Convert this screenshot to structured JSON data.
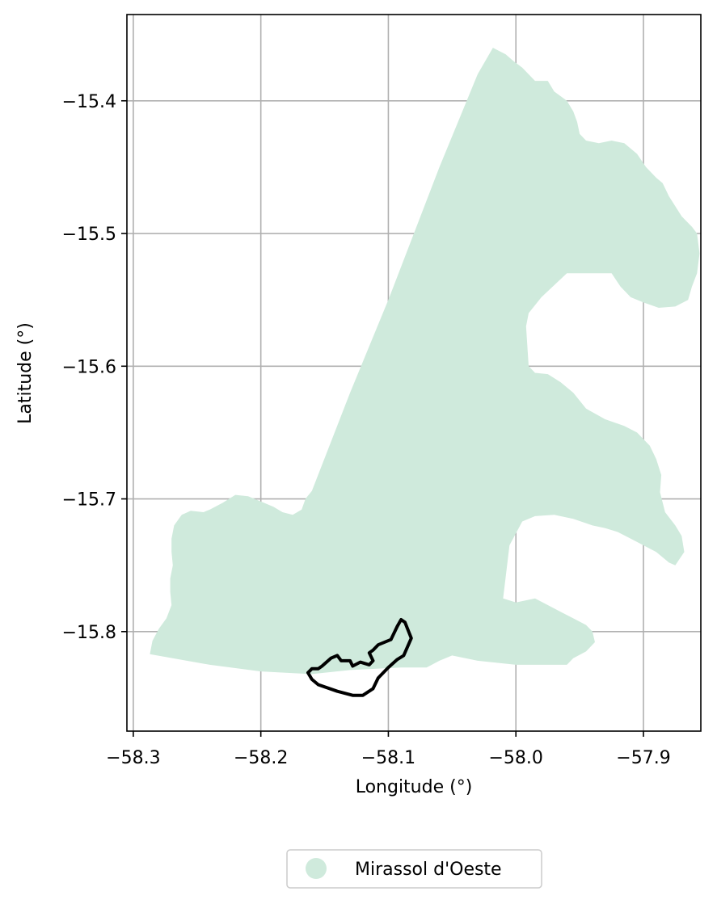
{
  "chart_data": {
    "type": "map",
    "xlabel": "Longitude (°)",
    "ylabel": "Latitude (°)",
    "xlim": [
      -58.305,
      -57.855
    ],
    "ylim": [
      -15.875,
      -15.335
    ],
    "xticks": [
      {
        "value": -58.3,
        "label": "−58.3"
      },
      {
        "value": -58.2,
        "label": "−58.2"
      },
      {
        "value": -58.1,
        "label": "−58.1"
      },
      {
        "value": -58.0,
        "label": "−58.0"
      },
      {
        "value": -57.9,
        "label": "−57.9"
      }
    ],
    "yticks": [
      {
        "value": -15.4,
        "label": "−15.4"
      },
      {
        "value": -15.5,
        "label": "−15.5"
      },
      {
        "value": -15.6,
        "label": "−15.6"
      },
      {
        "value": -15.7,
        "label": "−15.7"
      },
      {
        "value": -15.8,
        "label": "−15.8"
      }
    ],
    "grid": true,
    "legend": {
      "placement": "bottom-center",
      "entries": [
        {
          "label": "Mirassol d'Oeste",
          "color": "#cfeadc"
        }
      ]
    },
    "fill_color": "#cfeadc",
    "outline_color": "#000000",
    "region_polygon": [
      [
        -58.287,
        -15.817
      ],
      [
        -58.285,
        -15.807
      ],
      [
        -58.28,
        -15.798
      ],
      [
        -58.274,
        -15.79
      ],
      [
        -58.27,
        -15.78
      ],
      [
        -58.271,
        -15.77
      ],
      [
        -58.271,
        -15.76
      ],
      [
        -58.269,
        -15.75
      ],
      [
        -58.27,
        -15.74
      ],
      [
        -58.27,
        -15.73
      ],
      [
        -58.268,
        -15.72
      ],
      [
        -58.262,
        -15.712
      ],
      [
        -58.255,
        -15.709
      ],
      [
        -58.245,
        -15.71
      ],
      [
        -58.24,
        -15.708
      ],
      [
        -58.23,
        -15.703
      ],
      [
        -58.22,
        -15.697
      ],
      [
        -58.21,
        -15.698
      ],
      [
        -58.2,
        -15.702
      ],
      [
        -58.19,
        -15.706
      ],
      [
        -58.183,
        -15.71
      ],
      [
        -58.175,
        -15.712
      ],
      [
        -58.168,
        -15.708
      ],
      [
        -58.165,
        -15.7
      ],
      [
        -58.16,
        -15.694
      ],
      [
        -58.13,
        -15.62
      ],
      [
        -58.1,
        -15.55
      ],
      [
        -58.06,
        -15.45
      ],
      [
        -58.03,
        -15.38
      ],
      [
        -58.018,
        -15.36
      ],
      [
        -58.008,
        -15.365
      ],
      [
        -58.002,
        -15.37
      ],
      [
        -57.995,
        -15.375
      ],
      [
        -57.985,
        -15.385
      ],
      [
        -57.975,
        -15.385
      ],
      [
        -57.97,
        -15.393
      ],
      [
        -57.96,
        -15.4
      ],
      [
        -57.955,
        -15.408
      ],
      [
        -57.952,
        -15.416
      ],
      [
        -57.95,
        -15.425
      ],
      [
        -57.945,
        -15.43
      ],
      [
        -57.935,
        -15.432
      ],
      [
        -57.925,
        -15.43
      ],
      [
        -57.915,
        -15.432
      ],
      [
        -57.905,
        -15.44
      ],
      [
        -57.898,
        -15.45
      ],
      [
        -57.89,
        -15.458
      ],
      [
        -57.885,
        -15.462
      ],
      [
        -57.88,
        -15.472
      ],
      [
        -57.87,
        -15.487
      ],
      [
        -57.862,
        -15.495
      ],
      [
        -57.858,
        -15.5
      ],
      [
        -57.856,
        -15.515
      ],
      [
        -57.858,
        -15.53
      ],
      [
        -57.862,
        -15.54
      ],
      [
        -57.865,
        -15.55
      ],
      [
        -57.875,
        -15.555
      ],
      [
        -57.888,
        -15.556
      ],
      [
        -57.9,
        -15.552
      ],
      [
        -57.91,
        -15.548
      ],
      [
        -57.918,
        -15.54
      ],
      [
        -57.925,
        -15.53
      ],
      [
        -57.96,
        -15.53
      ],
      [
        -57.98,
        -15.548
      ],
      [
        -57.99,
        -15.56
      ],
      [
        -57.992,
        -15.57
      ],
      [
        -57.99,
        -15.6
      ],
      [
        -57.985,
        -15.605
      ],
      [
        -57.975,
        -15.606
      ],
      [
        -57.965,
        -15.612
      ],
      [
        -57.955,
        -15.62
      ],
      [
        -57.945,
        -15.632
      ],
      [
        -57.93,
        -15.64
      ],
      [
        -57.915,
        -15.645
      ],
      [
        -57.905,
        -15.65
      ],
      [
        -57.895,
        -15.66
      ],
      [
        -57.89,
        -15.67
      ],
      [
        -57.886,
        -15.682
      ],
      [
        -57.887,
        -15.695
      ],
      [
        -57.883,
        -15.71
      ],
      [
        -57.875,
        -15.72
      ],
      [
        -57.87,
        -15.728
      ],
      [
        -57.868,
        -15.74
      ],
      [
        -57.875,
        -15.75
      ],
      [
        -57.88,
        -15.748
      ],
      [
        -57.89,
        -15.74
      ],
      [
        -57.9,
        -15.735
      ],
      [
        -57.91,
        -15.73
      ],
      [
        -57.92,
        -15.725
      ],
      [
        -57.93,
        -15.722
      ],
      [
        -57.94,
        -15.72
      ],
      [
        -57.955,
        -15.715
      ],
      [
        -57.97,
        -15.712
      ],
      [
        -57.985,
        -15.713
      ],
      [
        -57.995,
        -15.717
      ],
      [
        -58.005,
        -15.735
      ],
      [
        -58.01,
        -15.775
      ],
      [
        -58.0,
        -15.778
      ],
      [
        -57.985,
        -15.775
      ],
      [
        -57.975,
        -15.78
      ],
      [
        -57.965,
        -15.785
      ],
      [
        -57.955,
        -15.79
      ],
      [
        -57.945,
        -15.795
      ],
      [
        -57.94,
        -15.8
      ],
      [
        -57.938,
        -15.808
      ],
      [
        -57.945,
        -15.815
      ],
      [
        -57.955,
        -15.82
      ],
      [
        -57.96,
        -15.825
      ],
      [
        -57.973,
        -15.825
      ],
      [
        -57.985,
        -15.825
      ],
      [
        -58.0,
        -15.825
      ],
      [
        -58.03,
        -15.822
      ],
      [
        -58.05,
        -15.818
      ],
      [
        -58.06,
        -15.822
      ],
      [
        -58.07,
        -15.827
      ],
      [
        -58.09,
        -15.827
      ],
      [
        -58.13,
        -15.829
      ],
      [
        -58.16,
        -15.832
      ],
      [
        -58.2,
        -15.83
      ],
      [
        -58.24,
        -15.825
      ],
      [
        -58.287,
        -15.817
      ]
    ],
    "outline_polygon": [
      [
        -58.152,
        -15.826
      ],
      [
        -58.145,
        -15.82
      ],
      [
        -58.14,
        -15.818
      ],
      [
        -58.137,
        -15.822
      ],
      [
        -58.13,
        -15.822
      ],
      [
        -58.128,
        -15.826
      ],
      [
        -58.122,
        -15.823
      ],
      [
        -58.115,
        -15.825
      ],
      [
        -58.112,
        -15.822
      ],
      [
        -58.115,
        -15.816
      ],
      [
        -58.112,
        -15.814
      ],
      [
        -58.108,
        -15.81
      ],
      [
        -58.098,
        -15.806
      ],
      [
        -58.093,
        -15.796
      ],
      [
        -58.09,
        -15.791
      ],
      [
        -58.087,
        -15.793
      ],
      [
        -58.082,
        -15.805
      ],
      [
        -58.088,
        -15.818
      ],
      [
        -58.093,
        -15.821
      ],
      [
        -58.1,
        -15.827
      ],
      [
        -58.108,
        -15.835
      ],
      [
        -58.112,
        -15.843
      ],
      [
        -58.12,
        -15.848
      ],
      [
        -58.128,
        -15.848
      ],
      [
        -58.14,
        -15.845
      ],
      [
        -58.155,
        -15.84
      ],
      [
        -58.16,
        -15.836
      ],
      [
        -58.163,
        -15.831
      ],
      [
        -58.16,
        -15.828
      ],
      [
        -58.155,
        -15.828
      ],
      [
        -58.152,
        -15.826
      ]
    ]
  }
}
